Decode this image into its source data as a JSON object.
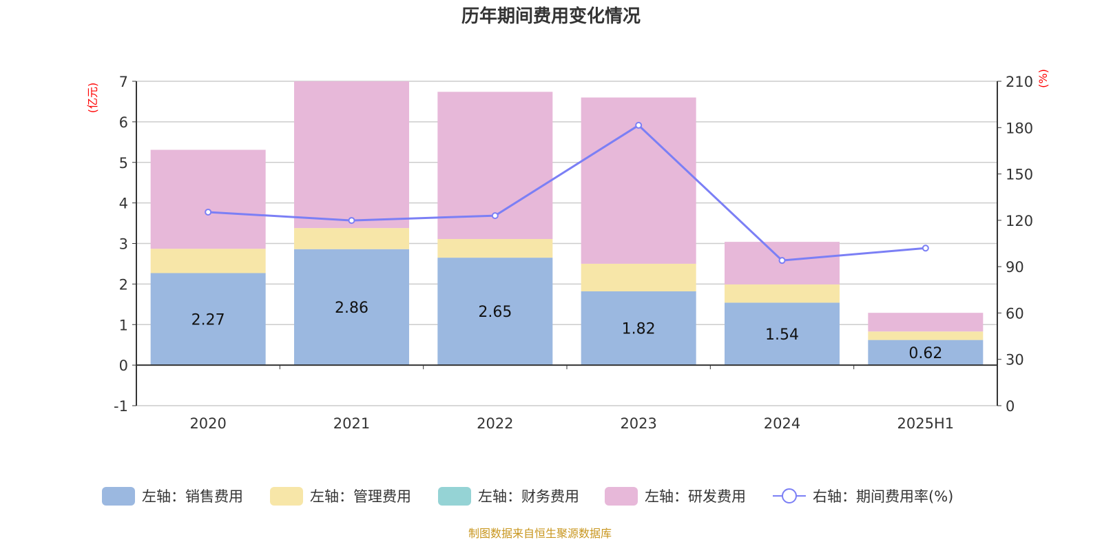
{
  "chart_data": {
    "type": "bar",
    "title": "历年期间费用变化情况",
    "categories": [
      "2020",
      "2021",
      "2022",
      "2023",
      "2024",
      "2025H1"
    ],
    "y_left": {
      "unit_label": "(亿元)",
      "range": [
        -1,
        7
      ],
      "ticks": [
        -1,
        0,
        1,
        2,
        3,
        4,
        5,
        6,
        7
      ]
    },
    "y_right": {
      "unit_label": "(%)",
      "range": [
        0,
        210
      ],
      "ticks": [
        0,
        30,
        60,
        90,
        120,
        150,
        180,
        210
      ]
    },
    "grid": true,
    "stacked": true,
    "legend_position": "bottom",
    "series": [
      {
        "name": "左轴：销售费用",
        "type": "bar",
        "axis": "left",
        "color": "#9bb8e0",
        "values": [
          2.27,
          2.86,
          2.65,
          1.82,
          1.54,
          0.62
        ],
        "data_labels": [
          "2.27",
          "2.86",
          "2.65",
          "1.82",
          "1.54",
          "0.62"
        ]
      },
      {
        "name": "左轴：管理费用",
        "type": "bar",
        "axis": "left",
        "color": "#f7e6a8",
        "values": [
          0.6,
          0.52,
          0.46,
          0.68,
          0.45,
          0.21
        ]
      },
      {
        "name": "左轴：财务费用",
        "type": "bar",
        "axis": "left",
        "color": "#95d3d5",
        "values": [
          0,
          0,
          0,
          0,
          0,
          0
        ]
      },
      {
        "name": "左轴：研发费用",
        "type": "bar",
        "axis": "left",
        "color": "#e7b8d9",
        "values": [
          2.44,
          3.62,
          3.63,
          4.1,
          1.05,
          0.46
        ]
      },
      {
        "name": "右轴：期间费用率(%)",
        "type": "line",
        "axis": "right",
        "color": "#7b7ff5",
        "values": [
          125.3,
          119.9,
          123.0,
          181.5,
          94.0,
          102.0
        ]
      }
    ],
    "footnote": "制图数据来自恒生聚源数据库"
  }
}
